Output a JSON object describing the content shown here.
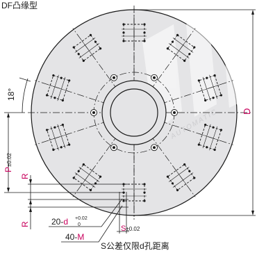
{
  "title": "DF凸缘型",
  "dims": {
    "angle": "18°",
    "diameter": "D",
    "pitch_letter": "P",
    "pitch_tol": "±0.02",
    "r_upper": "R",
    "r_lower": "R",
    "hole_count_prefix": "20-",
    "hole_letter": "d",
    "hole_tol_upper": "+0.02",
    "hole_tol_lower": "0",
    "thread_prefix": "40-",
    "thread_letter": "M",
    "spacing_letter": "S",
    "spacing_tol": "±0.02",
    "note": "S公差仅限d孔距离"
  },
  "watermark": {
    "lines": [
      "AUTOMATIC"
    ]
  },
  "colors": {
    "line": "#1a1a1a",
    "plate_fill": "#e4e4e6",
    "pink": "#c8005c",
    "watermark": "#b9b9bd"
  }
}
